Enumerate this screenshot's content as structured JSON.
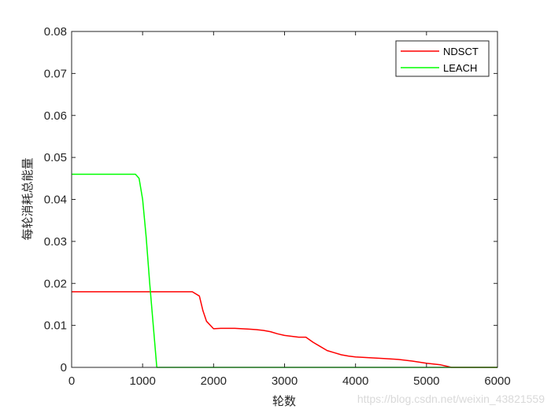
{
  "watermark": "https://blog.csdn.net/weixin_43821559",
  "chart_data": {
    "type": "line",
    "xlabel": "轮数",
    "ylabel": "每轮消耗总能量",
    "xlim": [
      0,
      6000
    ],
    "ylim": [
      0,
      0.08
    ],
    "xticks": [
      0,
      1000,
      2000,
      3000,
      4000,
      5000,
      6000
    ],
    "xtick_labels": [
      "0",
      "1000",
      "2000",
      "3000",
      "4000",
      "5000",
      "6000"
    ],
    "yticks": [
      0,
      0.01,
      0.02,
      0.03,
      0.04,
      0.05,
      0.06,
      0.07,
      0.08
    ],
    "ytick_labels": [
      "0",
      "0.01",
      "0.02",
      "0.03",
      "0.04",
      "0.05",
      "0.06",
      "0.07",
      "0.08"
    ],
    "grid": false,
    "legend_position": "top-right",
    "series": [
      {
        "name": "NDSCT",
        "color": "#ff0000",
        "x": [
          0,
          100,
          200,
          300,
          400,
          500,
          600,
          700,
          800,
          900,
          1000,
          1100,
          1200,
          1300,
          1400,
          1500,
          1600,
          1700,
          1800,
          1850,
          1900,
          2000,
          2100,
          2200,
          2300,
          2400,
          2500,
          2600,
          2700,
          2800,
          2900,
          3000,
          3100,
          3200,
          3300,
          3400,
          3500,
          3600,
          3700,
          3800,
          3900,
          4000,
          4200,
          4400,
          4600,
          4800,
          5000,
          5200,
          5300,
          5350,
          6000
        ],
        "y": [
          0.018,
          0.018,
          0.018,
          0.018,
          0.018,
          0.018,
          0.018,
          0.018,
          0.018,
          0.018,
          0.018,
          0.018,
          0.018,
          0.018,
          0.018,
          0.018,
          0.018,
          0.018,
          0.017,
          0.0135,
          0.011,
          0.0092,
          0.0093,
          0.0093,
          0.0093,
          0.0092,
          0.0091,
          0.009,
          0.0088,
          0.0085,
          0.008,
          0.0076,
          0.0074,
          0.0072,
          0.0072,
          0.006,
          0.005,
          0.004,
          0.0035,
          0.003,
          0.0027,
          0.0025,
          0.0023,
          0.0021,
          0.0019,
          0.0015,
          0.001,
          0.0006,
          0.0002,
          0,
          0
        ]
      },
      {
        "name": "LEACH",
        "color": "#00ff00",
        "x": [
          0,
          100,
          200,
          300,
          400,
          500,
          600,
          700,
          800,
          900,
          950,
          1000,
          1050,
          1100,
          1150,
          1200,
          1300,
          2000,
          3000,
          4000,
          5000,
          6000
        ],
        "y": [
          0.046,
          0.046,
          0.046,
          0.046,
          0.046,
          0.046,
          0.046,
          0.046,
          0.046,
          0.046,
          0.045,
          0.04,
          0.031,
          0.02,
          0.01,
          0,
          0,
          0,
          0,
          0,
          0,
          0
        ]
      }
    ]
  }
}
